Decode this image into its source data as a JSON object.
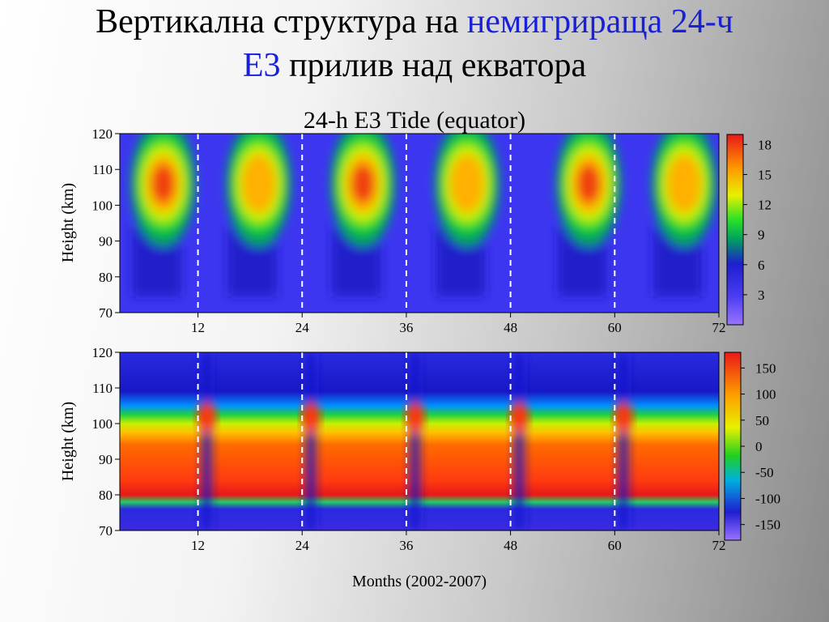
{
  "slide": {
    "title_line1_prefix": "Вертикална структура на ",
    "title_line1_accent": "немигрираща 24-ч",
    "title_line2_accent": "Е3",
    "title_line2_suffix": " прилив над екватора",
    "accent_color": "#1a20d8"
  },
  "chart_data": [
    {
      "type": "heatmap",
      "title": "24-h E3 Tide  (equator)",
      "ylabel": "Height  (km)",
      "xlabel": "",
      "xlim": [
        3,
        72
      ],
      "ylim": [
        70,
        120
      ],
      "xticks": [
        "12",
        "24",
        "36",
        "48",
        "60",
        "72"
      ],
      "yticks": [
        "70",
        "80",
        "90",
        "100",
        "110",
        "120"
      ],
      "colorbar": {
        "range": [
          0,
          19
        ],
        "ticks": [
          "3",
          "6",
          "9",
          "12",
          "15",
          "18"
        ]
      },
      "dashed_lines_x": [
        12,
        24,
        36,
        48,
        60
      ],
      "annual_peaks_month": [
        8,
        19,
        31,
        43,
        57,
        68
      ],
      "peak_height_km": 106,
      "max_amplitude": 18
    },
    {
      "type": "heatmap",
      "title": "",
      "ylabel": "Height  (km)",
      "xlabel": "Months  (2002-2007)",
      "xlim": [
        3,
        72
      ],
      "ylim": [
        70,
        120
      ],
      "xticks": [
        "12",
        "24",
        "36",
        "48",
        "60",
        "72"
      ],
      "yticks": [
        "70",
        "80",
        "90",
        "100",
        "110",
        "120"
      ],
      "colorbar": {
        "range": [
          -180,
          180
        ],
        "ticks": [
          "150",
          "100",
          "50",
          "0",
          "-50",
          "-100",
          "-150"
        ]
      },
      "dashed_lines_x": [
        12,
        24,
        36,
        48,
        60
      ],
      "phase_layers": [
        {
          "height_km": 112,
          "phase": -150
        },
        {
          "height_km": 100,
          "phase": 0
        },
        {
          "height_km": 88,
          "phase": 110
        },
        {
          "height_km": 72,
          "phase": -150
        }
      ]
    }
  ]
}
